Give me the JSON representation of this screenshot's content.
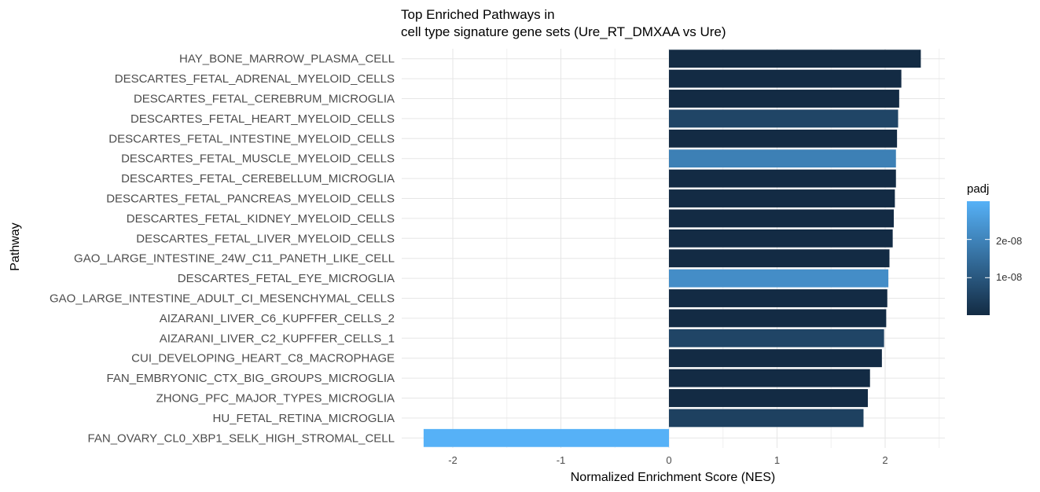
{
  "chart_data": {
    "type": "bar",
    "orientation": "horizontal",
    "title": [
      "Top Enriched Pathways in",
      "cell type signature gene sets (Ure_RT_DMXAA vs Ure)"
    ],
    "xlabel": "Normalized Enrichment Score (NES)",
    "ylabel": "Pathway",
    "xlim": [
      -2.45,
      2.55
    ],
    "xticks": [
      -2,
      -1,
      0,
      1,
      2
    ],
    "xtick_labels": [
      "-2",
      "-1",
      "0",
      "1",
      "2"
    ],
    "grid": true,
    "categories": [
      "HAY_BONE_MARROW_PLASMA_CELL",
      "DESCARTES_FETAL_ADRENAL_MYELOID_CELLS",
      "DESCARTES_FETAL_CEREBRUM_MICROGLIA",
      "DESCARTES_FETAL_HEART_MYELOID_CELLS",
      "DESCARTES_FETAL_INTESTINE_MYELOID_CELLS",
      "DESCARTES_FETAL_MUSCLE_MYELOID_CELLS",
      "DESCARTES_FETAL_CEREBELLUM_MICROGLIA",
      "DESCARTES_FETAL_PANCREAS_MYELOID_CELLS",
      "DESCARTES_FETAL_KIDNEY_MYELOID_CELLS",
      "DESCARTES_FETAL_LIVER_MYELOID_CELLS",
      "GAO_LARGE_INTESTINE_24W_C11_PANETH_LIKE_CELL",
      "DESCARTES_FETAL_EYE_MICROGLIA",
      "GAO_LARGE_INTESTINE_ADULT_CI_MESENCHYMAL_CELLS",
      "AIZARANI_LIVER_C6_KUPFFER_CELLS_2",
      "AIZARANI_LIVER_C2_KUPFFER_CELLS_1",
      "CUI_DEVELOPING_HEART_C8_MACROPHAGE",
      "FAN_EMBRYONIC_CTX_BIG_GROUPS_MICROGLIA",
      "ZHONG_PFC_MAJOR_TYPES_MICROGLIA",
      "HU_FETAL_RETINA_MICROGLIA",
      "FAN_OVARY_CL0_XBP1_SELK_HIGH_STROMAL_CELL"
    ],
    "values": [
      2.33,
      2.15,
      2.13,
      2.12,
      2.11,
      2.1,
      2.1,
      2.09,
      2.08,
      2.07,
      2.04,
      2.03,
      2.02,
      2.01,
      1.99,
      1.97,
      1.86,
      1.84,
      1.8,
      -2.27
    ],
    "padj": [
      2e-10,
      3e-10,
      3e-10,
      6e-09,
      3e-10,
      1.9e-08,
      3e-10,
      3e-10,
      3e-10,
      3e-10,
      3e-10,
      2.2e-08,
      3e-10,
      3e-10,
      6e-09,
      3e-10,
      3e-10,
      3e-10,
      5e-09,
      3e-08
    ],
    "legend": {
      "title": "padj",
      "position": "right",
      "ticks": [
        1e-08,
        2e-08
      ],
      "tick_labels": [
        "1e-08",
        "2e-08"
      ],
      "range": [
        2e-10,
        3e-08
      ],
      "color_low": "#132b43",
      "color_high": "#56b1f7"
    }
  }
}
